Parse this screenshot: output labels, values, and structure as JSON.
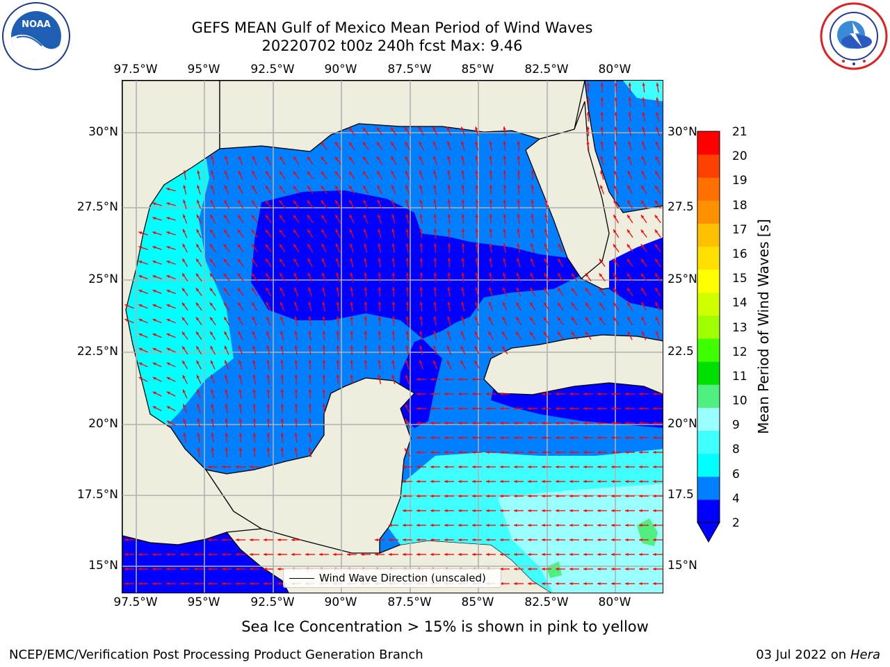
{
  "header": {
    "title_line1": "GEFS MEAN Gulf of Mexico Mean Period of Wind Waves",
    "title_line2": "20220702 t00z 240h fcst   Max: 9.46"
  },
  "logos": {
    "left": {
      "icon": "noaa-logo-icon",
      "text": "NOAA",
      "ring_text": "NATIONAL OCEANIC AND ATMOSPHERIC ADMINISTRATION · U.S. DEPARTMENT OF COMMERCE"
    },
    "right": {
      "icon": "nws-logo-icon",
      "ring_text": "NATIONAL WEATHER SERVICE"
    }
  },
  "map": {
    "lon_ticks": [
      "97.5°W",
      "95°W",
      "92.5°W",
      "90°W",
      "87.5°W",
      "85°W",
      "82.5°W",
      "80°W"
    ],
    "lat_ticks_left": [
      "30°N",
      "27.5°N",
      "25°N",
      "22.5°N",
      "20°N",
      "17.5°N",
      "15°N"
    ],
    "lat_ticks_right": [
      "30°N",
      "27.5",
      "25°N",
      "22.5",
      "20°N",
      "17.5",
      "15°N"
    ],
    "legend_label": "Wind Wave Direction (unscaled)",
    "land_color": "#efedde",
    "arrow_color": "#ff0000"
  },
  "colorbar": {
    "label": "Mean Period of Wind Waves [s]",
    "ticks": [
      "21",
      "20",
      "19",
      "18",
      "17",
      "16",
      "15",
      "14",
      "13",
      "12",
      "11",
      "10",
      "9",
      "8",
      "6",
      "4",
      "2"
    ],
    "colors": [
      "#0000ff",
      "#0080ff",
      "#00ffff",
      "#40ffff",
      "#9affff",
      "#50f080",
      "#00e000",
      "#40ff00",
      "#a0ff00",
      "#d0ff00",
      "#ffff00",
      "#ffe000",
      "#ffc000",
      "#ff9000",
      "#ff7000",
      "#ff4000",
      "#ff0000"
    ]
  },
  "footer": {
    "note": "Sea Ice Concentration > 15% is shown in pink to yellow",
    "credit_left": "NCEP/EMC/Verification Post Processing Product Generation Branch",
    "credit_date": "03 Jul 2022 on",
    "credit_host": "Hera"
  }
}
